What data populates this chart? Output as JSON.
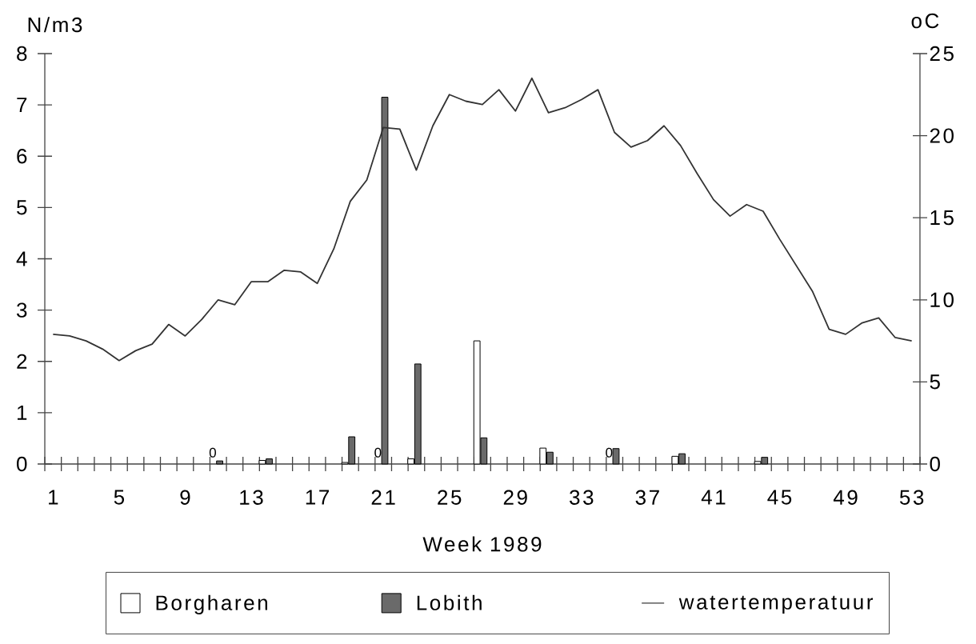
{
  "chart_data": {
    "type": "bar",
    "categories": [
      "1",
      null,
      null,
      null,
      "5",
      null,
      null,
      null,
      "9",
      null,
      null,
      null,
      "13",
      null,
      null,
      null,
      "17",
      null,
      null,
      null,
      "21",
      null,
      null,
      null,
      "25",
      null,
      null,
      null,
      "29",
      null,
      null,
      null,
      "33",
      null,
      null,
      null,
      "37",
      null,
      null,
      null,
      "41",
      null,
      null,
      null,
      "45",
      null,
      null,
      null,
      "49",
      null,
      null,
      null,
      "53"
    ],
    "xlabel": "Week 1989",
    "ylabel": "N/m3",
    "y2label": "oC",
    "ylim": [
      0,
      8
    ],
    "yticks": [
      0,
      1,
      2,
      3,
      4,
      5,
      6,
      7,
      8
    ],
    "y2lim": [
      0,
      25
    ],
    "y2ticks": [
      0,
      5,
      10,
      15,
      20,
      25
    ],
    "legend": "bottom",
    "series": [
      {
        "name": "Borgharen",
        "color": "#ffffff",
        "values": [
          null,
          null,
          null,
          null,
          null,
          null,
          null,
          null,
          null,
          null,
          0,
          null,
          null,
          0.07,
          null,
          null,
          null,
          null,
          0.03,
          null,
          0,
          null,
          0.1,
          null,
          null,
          null,
          2.4,
          null,
          null,
          null,
          0.31,
          null,
          null,
          null,
          0,
          null,
          null,
          null,
          0.15,
          null,
          null,
          null,
          null,
          0.05,
          null,
          null,
          null,
          null,
          null,
          null,
          null,
          null,
          null
        ],
        "value_labels": [
          null,
          null,
          null,
          null,
          null,
          null,
          null,
          null,
          null,
          null,
          "0",
          null,
          null,
          null,
          null,
          null,
          null,
          null,
          null,
          null,
          "0",
          null,
          null,
          null,
          null,
          null,
          null,
          null,
          null,
          null,
          null,
          null,
          null,
          null,
          "0",
          null,
          null,
          null,
          null,
          null,
          null,
          null,
          null,
          null,
          null,
          null,
          null,
          null,
          null,
          null,
          null,
          null,
          null
        ]
      },
      {
        "name": "Lobith",
        "color": "#6a6a6a",
        "values": [
          null,
          null,
          null,
          null,
          null,
          null,
          null,
          null,
          null,
          null,
          0.06,
          null,
          null,
          0.1,
          null,
          null,
          null,
          null,
          0.53,
          null,
          7.15,
          null,
          1.95,
          null,
          null,
          null,
          0.51,
          null,
          null,
          null,
          0.23,
          null,
          null,
          null,
          0.3,
          null,
          null,
          null,
          0.2,
          null,
          null,
          null,
          null,
          0.13,
          null,
          null,
          null,
          null,
          null,
          null,
          null,
          null,
          null
        ]
      },
      {
        "name": "watertemperatuur",
        "type": "line",
        "axis": "y2",
        "color": "#333333",
        "values": [
          7.9,
          7.8,
          7.5,
          7.0,
          6.3,
          6.9,
          7.3,
          8.5,
          7.8,
          8.8,
          10.0,
          9.7,
          11.1,
          11.1,
          11.8,
          11.7,
          11.0,
          13.1,
          16.0,
          17.3,
          20.5,
          20.4,
          17.9,
          20.6,
          22.5,
          22.1,
          21.9,
          22.8,
          21.5,
          23.5,
          21.4,
          21.7,
          22.2,
          22.8,
          20.2,
          19.3,
          19.7,
          20.6,
          19.4,
          17.7,
          16.1,
          15.1,
          15.8,
          15.4,
          13.7,
          12.1,
          10.5,
          8.2,
          7.9,
          8.6,
          8.9,
          7.7,
          7.5
        ]
      }
    ]
  }
}
